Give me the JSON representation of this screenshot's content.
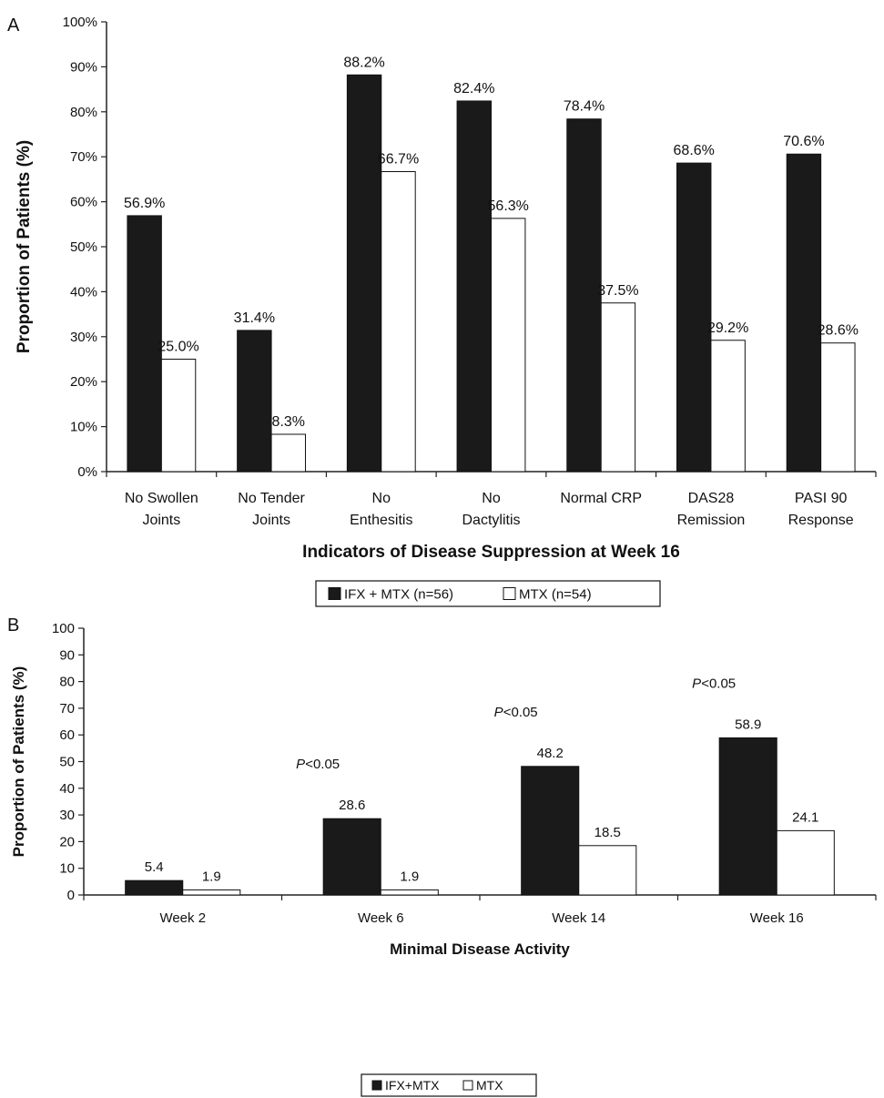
{
  "colors": {
    "dark_bar": "#1a1a1a",
    "light_bar": "#ffffff",
    "axis": "#222222"
  },
  "chart_data": [
    {
      "panel": "A",
      "type": "bar",
      "ylabel": "Proportion of Patients (%)",
      "xlabel": "Indicators of Disease Suppression at Week 16",
      "ylim": [
        0,
        100
      ],
      "ytick_values": [
        0,
        10,
        20,
        30,
        40,
        50,
        60,
        70,
        80,
        90,
        100
      ],
      "ytick_labels": [
        "0%",
        "10%",
        "20%",
        "30%",
        "40%",
        "50%",
        "60%",
        "70%",
        "80%",
        "90%",
        "100%"
      ],
      "categories": [
        [
          "No Swollen",
          "Joints"
        ],
        [
          "No Tender",
          "Joints"
        ],
        [
          "No",
          "Enthesitis"
        ],
        [
          "No",
          "Dactylitis"
        ],
        [
          "Normal CRP"
        ],
        [
          "DAS28",
          "Remission"
        ],
        [
          "PASI 90",
          "Response"
        ]
      ],
      "series": [
        {
          "name": "IFX + MTX (n=56)",
          "color": "dark",
          "values": [
            56.9,
            31.4,
            88.2,
            82.4,
            78.4,
            68.6,
            70.6
          ],
          "labels": [
            "56.9%",
            "31.4%",
            "88.2%",
            "82.4%",
            "78.4%",
            "68.6%",
            "70.6%"
          ]
        },
        {
          "name": "MTX (n=54)",
          "color": "light",
          "values": [
            25.0,
            8.3,
            66.7,
            56.3,
            37.5,
            29.2,
            28.6
          ],
          "labels": [
            "25.0%",
            "8.3%",
            "66.7%",
            "56.3%",
            "37.5%",
            "29.2%",
            "28.6%"
          ]
        }
      ],
      "grid": false,
      "legend": "bottom-center"
    },
    {
      "panel": "B",
      "type": "bar",
      "ylabel": "Proportion of Patients (%)",
      "xlabel": "Minimal  Disease Activity",
      "ylim": [
        0,
        100
      ],
      "ytick_values": [
        0,
        10,
        20,
        30,
        40,
        50,
        60,
        70,
        80,
        90,
        100
      ],
      "ytick_labels": [
        "0",
        "10",
        "20",
        "30",
        "40",
        "50",
        "60",
        "70",
        "80",
        "90",
        "100"
      ],
      "categories": [
        [
          "Week 2"
        ],
        [
          "Week 6"
        ],
        [
          "Week 14"
        ],
        [
          "Week 16"
        ]
      ],
      "series": [
        {
          "name": "IFX+MTX",
          "color": "dark",
          "values": [
            5.4,
            28.6,
            48.2,
            58.9
          ],
          "labels": [
            "5.4",
            "28.6",
            "48.2",
            "58.9"
          ]
        },
        {
          "name": "MTX",
          "color": "light",
          "values": [
            1.9,
            1.9,
            18.5,
            24.1
          ],
          "labels": [
            "1.9",
            "1.9",
            "18.5",
            "24.1"
          ]
        }
      ],
      "annotations": [
        {
          "category": 1,
          "italic": "P",
          "text": "<0.05"
        },
        {
          "category": 2,
          "italic": "P",
          "text": "<0.05"
        },
        {
          "category": 3,
          "italic": "P",
          "text": "<0.05"
        }
      ],
      "grid": false,
      "legend": "bottom-center"
    }
  ],
  "panel_labels": {
    "a": "A",
    "b": "B"
  }
}
